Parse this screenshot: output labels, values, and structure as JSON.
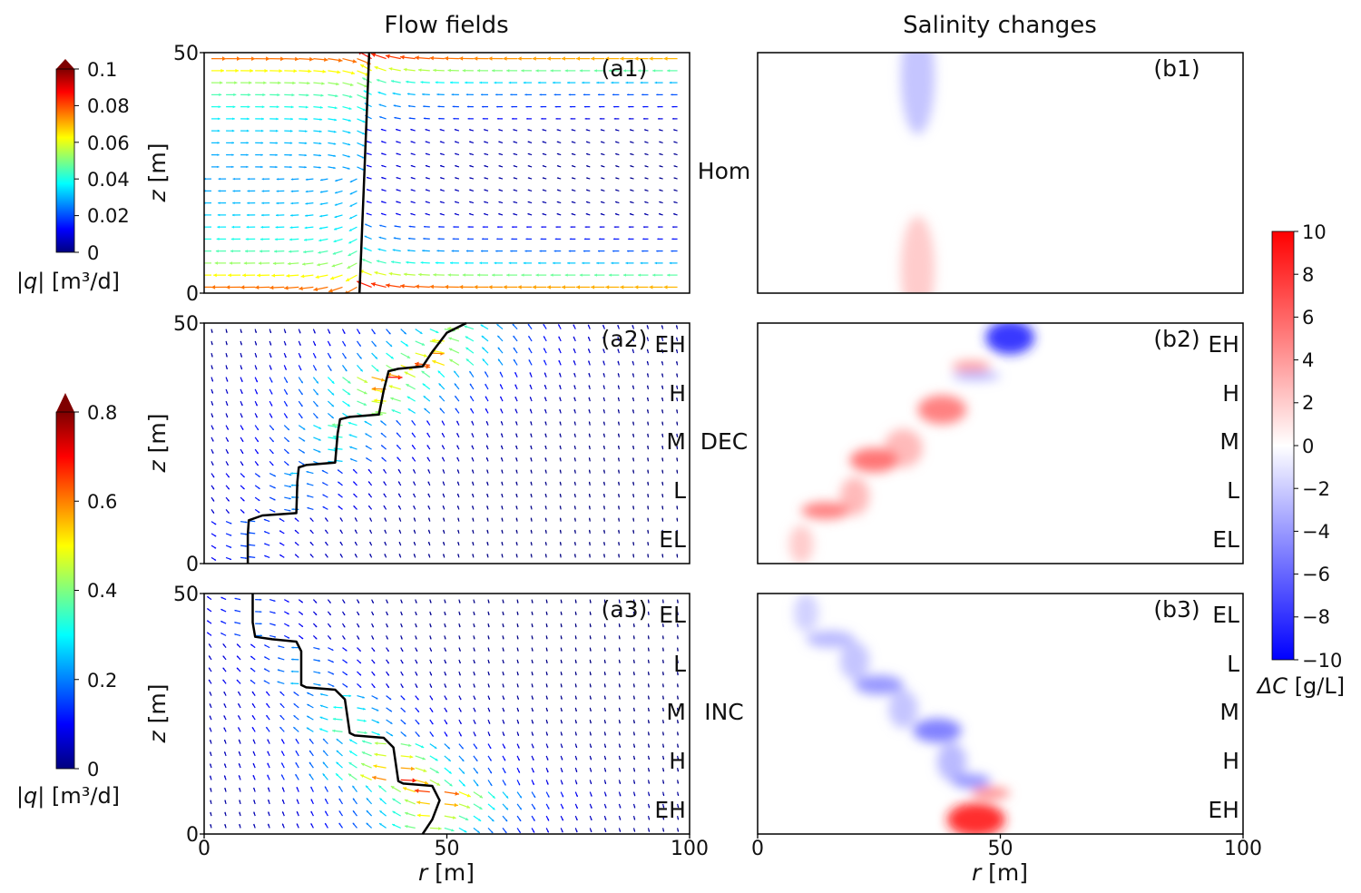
{
  "columns": {
    "left": "Flow fields",
    "right": "Salinity changes"
  },
  "x_axis": {
    "label_var": "r",
    "label_unit": " [m]",
    "ticks": [
      "0",
      "50",
      "100"
    ]
  },
  "y_axis": {
    "label_var": "z",
    "label_unit": " [m]",
    "ticks": [
      "0",
      "50"
    ]
  },
  "rows": [
    {
      "case": "Hom",
      "flow_tag": "(a1)",
      "sal_tag": "(b1)",
      "layers": []
    },
    {
      "case": "DEC",
      "flow_tag": "(a2)",
      "sal_tag": "(b2)",
      "layers": [
        "EH",
        "H",
        "M",
        "L",
        "EL"
      ]
    },
    {
      "case": "INC",
      "flow_tag": "(a3)",
      "sal_tag": "(b3)",
      "layers": [
        "EL",
        "L",
        "M",
        "H",
        "EH"
      ]
    }
  ],
  "colorbars": {
    "flow_top": {
      "ticks": [
        "0.1",
        "0.08",
        "0.06",
        "0.04",
        "0.02",
        "0"
      ],
      "max": 0.1,
      "label_prefix": "|q|",
      "label_unit": " [m³/d]"
    },
    "flow_bottom": {
      "ticks": [
        "0.8",
        "0.6",
        "0.4",
        "0.2",
        "0"
      ],
      "max": 0.8,
      "label_prefix": "|q|",
      "label_unit": " [m³/d]"
    },
    "salinity": {
      "ticks": [
        "10",
        "8",
        "6",
        "4",
        "2",
        "0",
        "−2",
        "−4",
        "−6",
        "−8",
        "−10"
      ],
      "min": -10,
      "max": 10,
      "label_var": "ΔC",
      "label_unit": " [g/L]"
    }
  },
  "chart_data": [
    {
      "type": "quiver",
      "panel": "(a1)",
      "title": "Flow fields",
      "case": "Hom",
      "xlabel": "r [m]",
      "ylabel": "z [m]",
      "xlim": [
        0,
        100
      ],
      "ylim": [
        0,
        50
      ],
      "colorbar_range": [
        0,
        0.1
      ],
      "interface": {
        "r": [
          34,
          33,
          32
        ],
        "z": [
          50,
          25,
          0
        ]
      }
    },
    {
      "type": "quiver",
      "panel": "(a2)",
      "case": "DEC",
      "xlabel": "r [m]",
      "ylabel": "z [m]",
      "xlim": [
        0,
        100
      ],
      "ylim": [
        0,
        50
      ],
      "colorbar_range": [
        0,
        0.8
      ],
      "interface": {
        "r": [
          9,
          9,
          9.2,
          12,
          19,
          19.2,
          19.5,
          21,
          27,
          27.5,
          28,
          30,
          36,
          37,
          38,
          40,
          45,
          47,
          50,
          54
        ],
        "z": [
          0,
          6,
          9,
          10,
          10.5,
          17,
          20,
          20.5,
          21,
          27,
          30,
          30.5,
          31,
          36,
          40,
          40.5,
          41,
          44,
          48,
          50
        ]
      },
      "layers": [
        "EH",
        "H",
        "M",
        "L",
        "EL"
      ]
    },
    {
      "type": "quiver",
      "panel": "(a3)",
      "case": "INC",
      "xlabel": "r [m]",
      "ylabel": "z [m]",
      "xlim": [
        0,
        100
      ],
      "ylim": [
        0,
        50
      ],
      "colorbar_range": [
        0,
        0.8
      ],
      "interface": {
        "r": [
          10,
          10,
          10.5,
          14,
          19,
          20,
          20,
          21,
          27,
          29,
          30,
          31,
          37,
          39,
          40,
          41,
          47,
          48.5,
          47,
          45
        ],
        "z": [
          50,
          44,
          41,
          40.5,
          40,
          38,
          31,
          30.5,
          30,
          28,
          21,
          20.5,
          20,
          18,
          11,
          10.5,
          10,
          7,
          3,
          0
        ]
      },
      "layers": [
        "EL",
        "L",
        "M",
        "H",
        "EH"
      ]
    },
    {
      "type": "heatmap",
      "panel": "(b1)",
      "title": "Salinity changes",
      "case": "Hom",
      "xlabel": "r [m]",
      "ylabel": "",
      "xlim": [
        0,
        100
      ],
      "ylim": [
        0,
        50
      ],
      "colorbar_range": [
        -10,
        10
      ],
      "blobs": [
        {
          "r": 33,
          "z": 45,
          "dC": -2.5,
          "sr": 3.5,
          "sz": 12
        },
        {
          "r": 33,
          "z": 5,
          "dC": 2.2,
          "sr": 3.5,
          "sz": 11
        }
      ]
    },
    {
      "type": "heatmap",
      "panel": "(b2)",
      "case": "DEC",
      "xlabel": "r [m]",
      "ylabel": "",
      "xlim": [
        0,
        100
      ],
      "ylim": [
        0,
        50
      ],
      "colorbar_range": [
        -10,
        10
      ],
      "blobs": [
        {
          "r": 52,
          "z": 47,
          "dC": -8.5,
          "sr": 5,
          "sz": 3.5
        },
        {
          "r": 44,
          "z": 41,
          "dC": 4,
          "sr": 4,
          "sz": 1.2
        },
        {
          "r": 45,
          "z": 39,
          "dC": -3,
          "sr": 5,
          "sz": 1
        },
        {
          "r": 38,
          "z": 32,
          "dC": 5.5,
          "sr": 5,
          "sz": 3
        },
        {
          "r": 30,
          "z": 24,
          "dC": 3,
          "sr": 4,
          "sz": 4
        },
        {
          "r": 24,
          "z": 21.5,
          "dC": 6,
          "sr": 5,
          "sz": 2.5
        },
        {
          "r": 20,
          "z": 14,
          "dC": 3,
          "sr": 3,
          "sz": 4
        },
        {
          "r": 14,
          "z": 11,
          "dC": 5.5,
          "sr": 5,
          "sz": 1.8
        },
        {
          "r": 9,
          "z": 4,
          "dC": 2.2,
          "sr": 2.5,
          "sz": 4
        }
      ]
    },
    {
      "type": "heatmap",
      "panel": "(b3)",
      "case": "INC",
      "xlabel": "r [m]",
      "ylabel": "",
      "xlim": [
        0,
        100
      ],
      "ylim": [
        0,
        50
      ],
      "colorbar_range": [
        -10,
        10
      ],
      "blobs": [
        {
          "r": 10,
          "z": 46,
          "dC": -2,
          "sr": 2.5,
          "sz": 4
        },
        {
          "r": 15,
          "z": 40.5,
          "dC": -3,
          "sr": 5,
          "sz": 1.8
        },
        {
          "r": 20,
          "z": 36,
          "dC": -2.5,
          "sr": 3,
          "sz": 4
        },
        {
          "r": 25,
          "z": 31,
          "dC": -4.5,
          "sr": 5,
          "sz": 2
        },
        {
          "r": 30,
          "z": 26,
          "dC": -2.5,
          "sr": 3,
          "sz": 4
        },
        {
          "r": 37,
          "z": 21.5,
          "dC": -5.5,
          "sr": 5,
          "sz": 2.5
        },
        {
          "r": 40,
          "z": 15,
          "dC": -3,
          "sr": 3,
          "sz": 4
        },
        {
          "r": 44,
          "z": 11,
          "dC": -4.5,
          "sr": 4,
          "sz": 1.5
        },
        {
          "r": 48,
          "z": 8.5,
          "dC": 5,
          "sr": 4,
          "sz": 1.2
        },
        {
          "r": 45,
          "z": 3,
          "dC": 9,
          "sr": 6,
          "sz": 3.5
        }
      ]
    }
  ]
}
